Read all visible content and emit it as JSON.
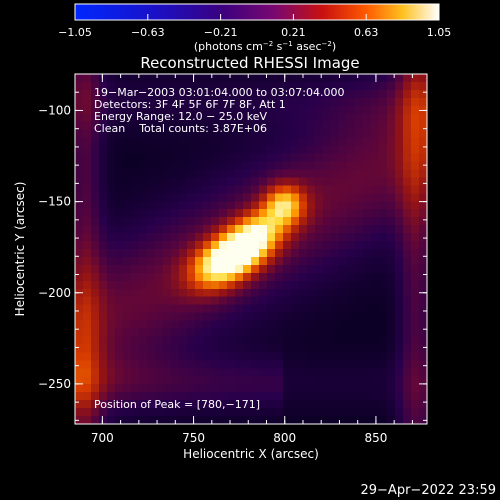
{
  "chart_data": {
    "type": "heatmap",
    "title": "Reconstructed RHESSI Image",
    "xlabel": "Heliocentric X (arcsec)",
    "ylabel": "Heliocentric Y (arcsec)",
    "xlim": [
      685,
      878
    ],
    "ylim": [
      -272,
      -80
    ],
    "x_ticks": [
      700,
      750,
      800,
      850
    ],
    "y_ticks": [
      -100,
      -150,
      -200,
      -250
    ],
    "x_tick_labels": [
      "700",
      "750",
      "800",
      "850"
    ],
    "y_tick_labels": [
      "−100",
      "−150",
      "−200",
      "−250"
    ],
    "colorbar": {
      "min": -1.05,
      "max": 1.05,
      "tick_values": [
        -1.05,
        -0.63,
        -0.21,
        0.21,
        0.63,
        1.05
      ],
      "tick_labels": [
        "−1.05",
        "−0.63",
        "−0.21",
        "0.21",
        "0.63",
        "1.05"
      ],
      "units_prefix": "(photons cm",
      "units_sup1": "−2",
      "units_mid1": " s",
      "units_sup2": "−1",
      "units_mid2": " asec",
      "units_sup3": "−2",
      "units_suffix": ")"
    },
    "info_lines": [
      "19−Mar−2003 03:01:04.000 to 03:07:04.000",
      "Detectors: 3F 4F 5F 6F 7F 8F, Att 1",
      "Energy Range: 12.0 − 25.0 keV",
      "Clean    Total counts: 3.87E+06"
    ],
    "peak_label": "Position of Peak = [780,−171]",
    "peak": [
      780,
      -171
    ],
    "sources": [
      {
        "x": 778,
        "y": -175,
        "sx": 17,
        "sy": 9,
        "angle_deg": 40,
        "amp": 1.0
      },
      {
        "x": 800,
        "y": -151,
        "sx": 8,
        "sy": 8,
        "angle_deg": 0,
        "amp": 0.55
      },
      {
        "x": 760,
        "y": -185,
        "sx": 12,
        "sy": 9,
        "angle_deg": 30,
        "amp": 0.35
      }
    ]
  },
  "timestamp": "29−Apr−2022 23:59"
}
